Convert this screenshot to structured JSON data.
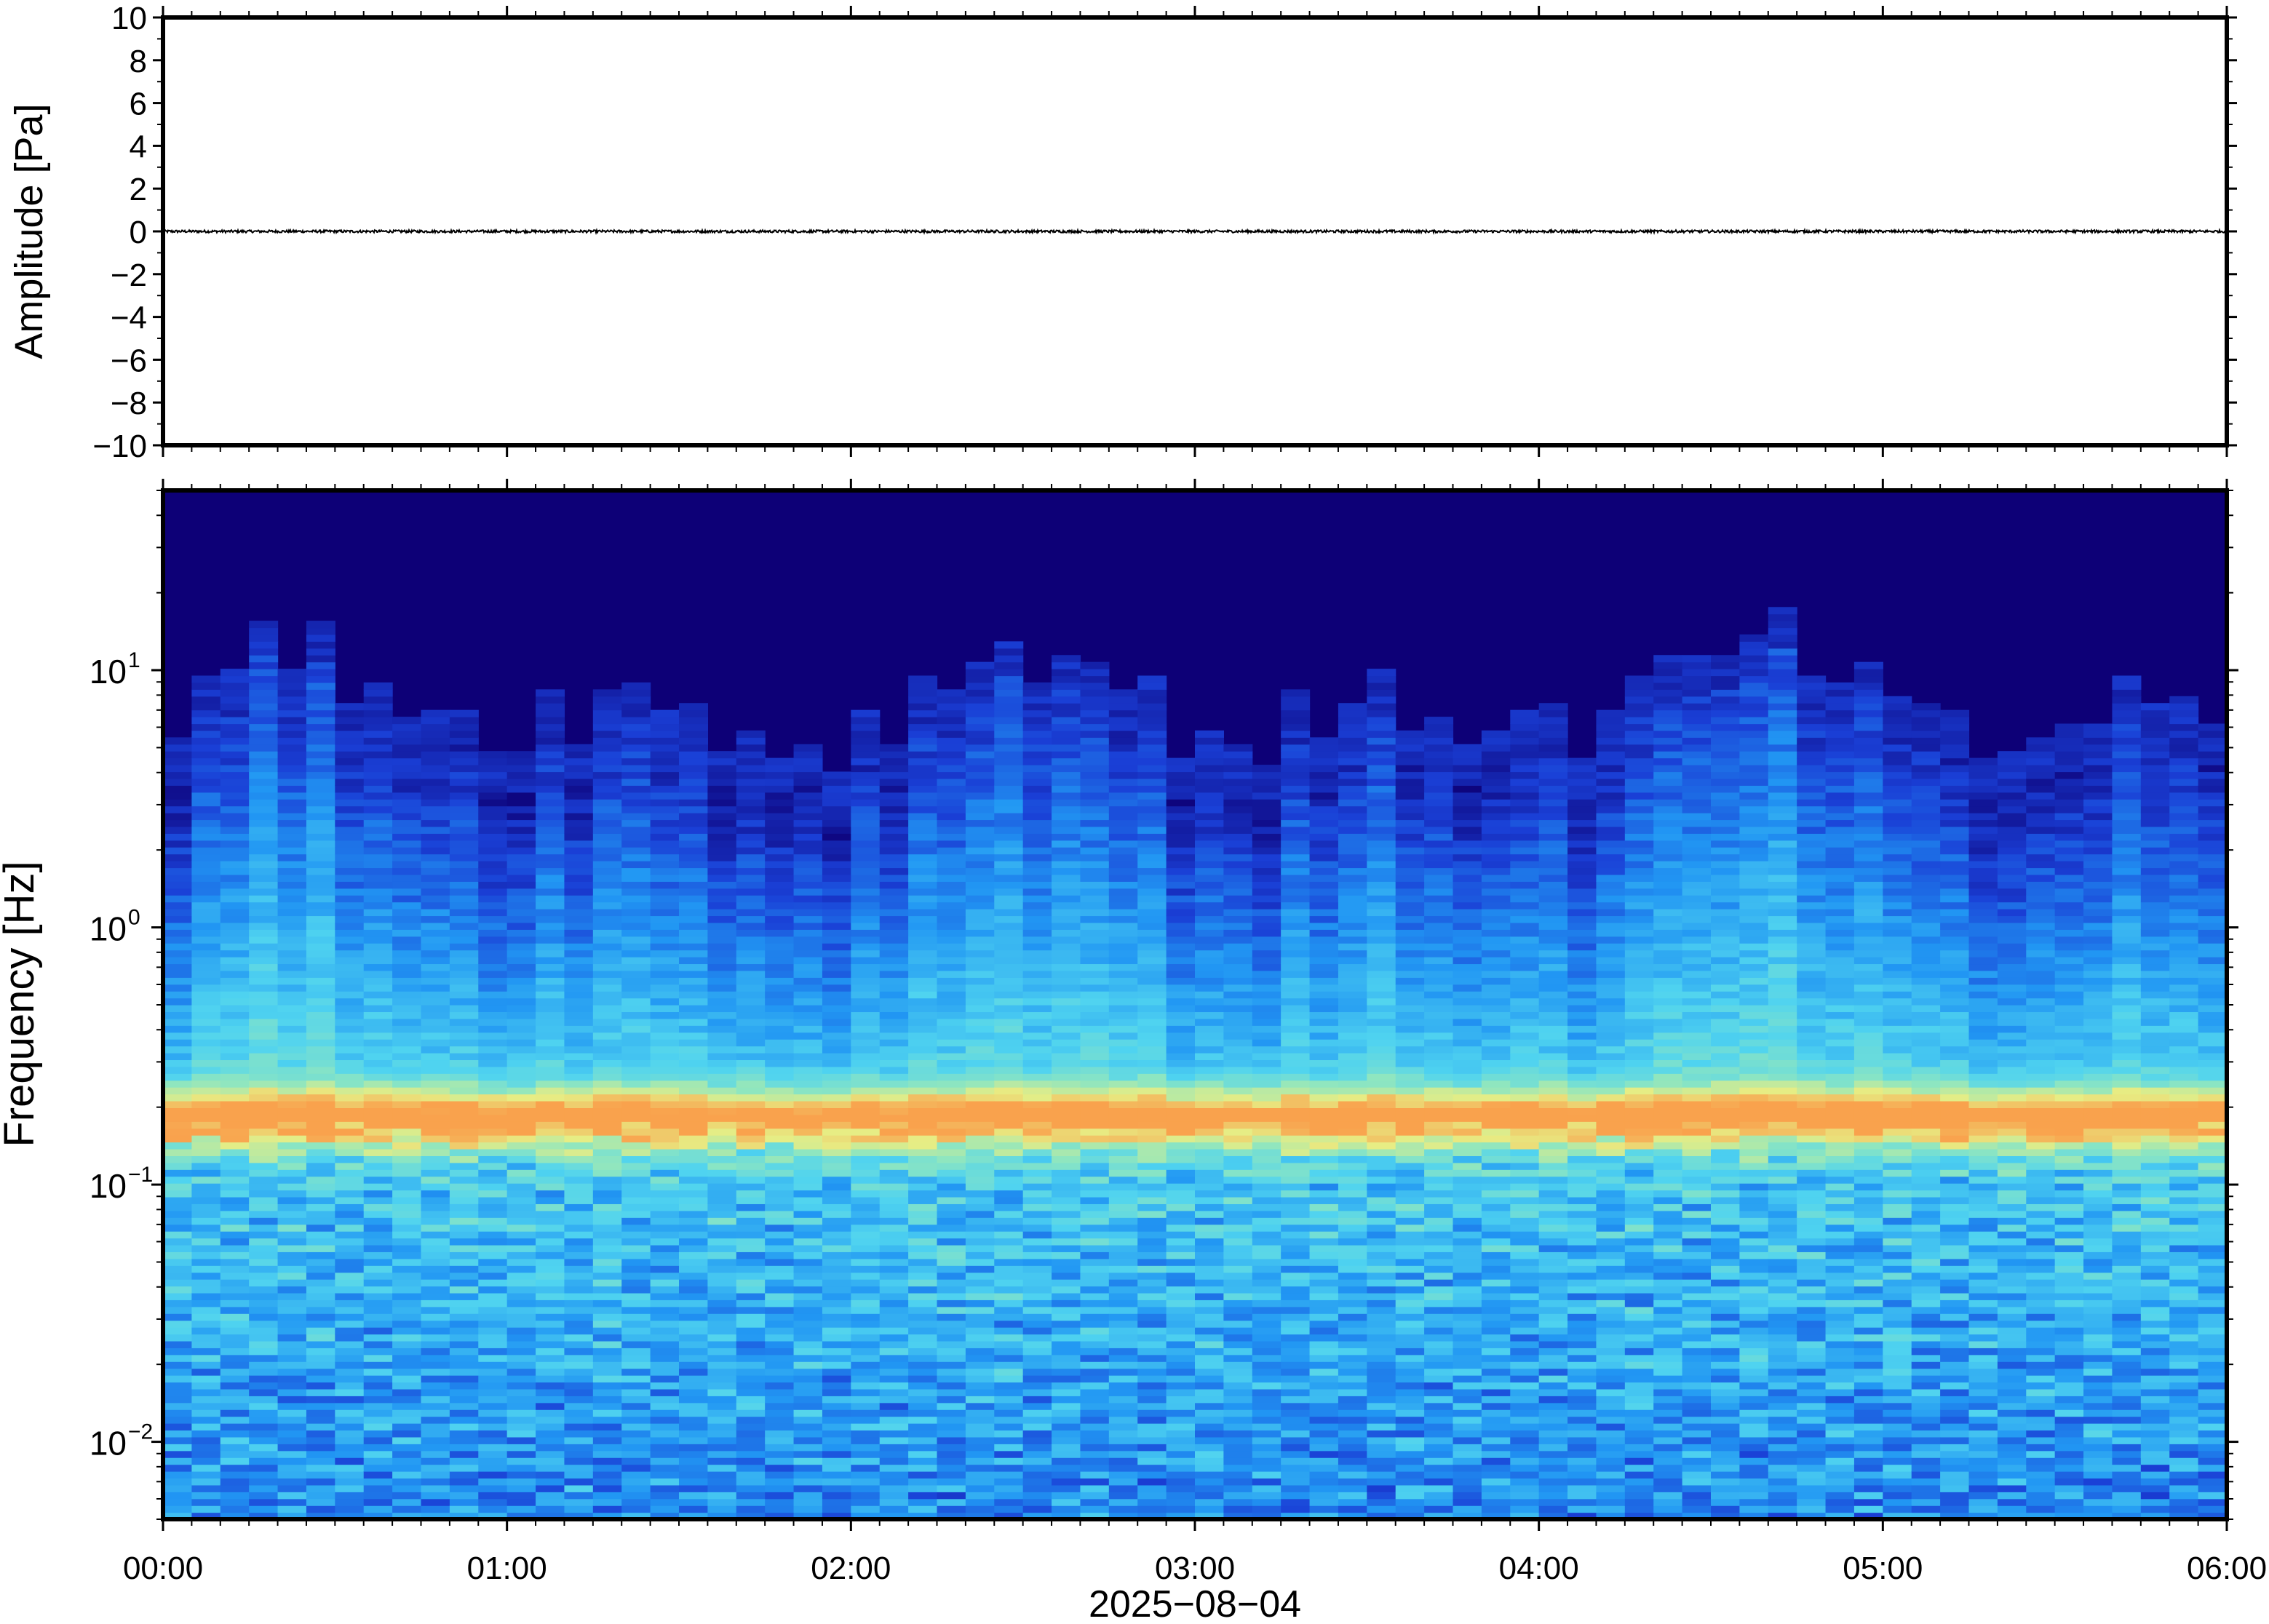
{
  "chart_data": [
    {
      "type": "line",
      "ylabel": "Amplitude [Pa]",
      "ylim": [
        -10,
        10
      ],
      "yticks": [
        "10",
        "8",
        "6",
        "4",
        "2",
        "0",
        "−2",
        "−4",
        "−6",
        "−8",
        "−10"
      ],
      "yvalues": [
        10,
        8,
        6,
        4,
        2,
        0,
        -2,
        -4,
        -6,
        -8,
        -10
      ],
      "x_range": [
        "00:00",
        "06:00"
      ],
      "series": [
        {
          "description_values": "near-zero pressure trace",
          "noise_amplitude_pa": 0.06
        }
      ],
      "grid": false
    },
    {
      "type": "heatmap",
      "ylabel": "Frequency [Hz]",
      "yscale": "log",
      "ylim_hz": [
        0.005,
        50
      ],
      "ytick_bases": [
        "10",
        "10",
        "10",
        "10"
      ],
      "ytick_exponents": [
        "1",
        "0",
        "−1",
        "−2"
      ],
      "ytick_values_hz": [
        10,
        1,
        0.1,
        0.01
      ],
      "xlabel": "2025−08−04",
      "xticks": [
        "00:00",
        "01:00",
        "02:00",
        "03:00",
        "04:00",
        "05:00",
        "06:00"
      ],
      "x_hours": [
        0,
        1,
        2,
        3,
        4,
        5,
        6
      ],
      "colormap": [
        "#0d0077",
        "#1a3fd6",
        "#2196f3",
        "#4fd3f0",
        "#8ee6c0",
        "#e7ed84",
        "#f9a24d"
      ],
      "peak_band_hz": 0.18,
      "grid": false
    }
  ]
}
